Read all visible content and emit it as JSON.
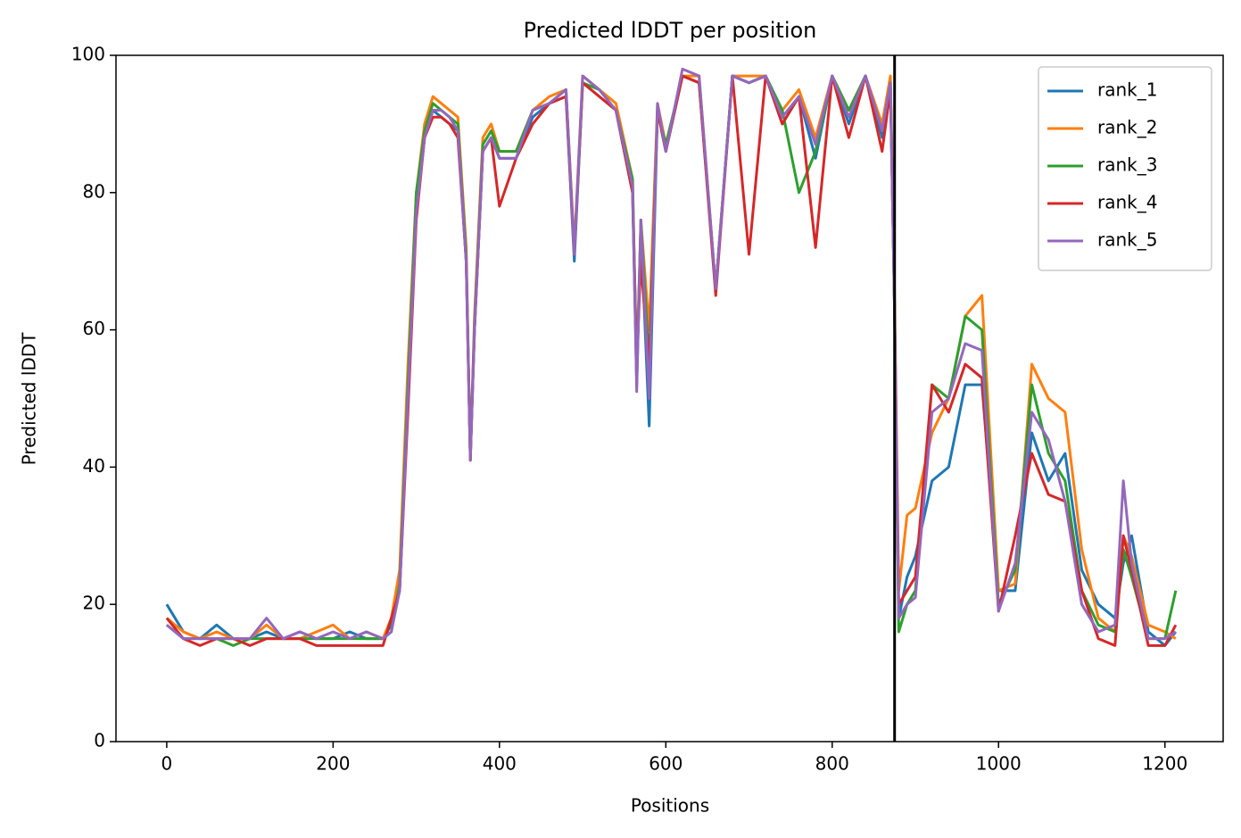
{
  "chart_data": {
    "type": "line",
    "title": "Predicted lDDT per position",
    "xlabel": "Positions",
    "ylabel": "Predicted lDDT",
    "x": [
      0,
      20,
      40,
      60,
      80,
      100,
      120,
      140,
      160,
      180,
      200,
      220,
      240,
      260,
      270,
      280,
      290,
      300,
      310,
      320,
      330,
      340,
      350,
      360,
      365,
      370,
      380,
      390,
      400,
      420,
      440,
      460,
      480,
      490,
      500,
      520,
      540,
      560,
      565,
      570,
      580,
      590,
      600,
      620,
      640,
      660,
      680,
      700,
      720,
      740,
      760,
      780,
      800,
      820,
      840,
      860,
      870,
      875,
      880,
      890,
      900,
      920,
      940,
      960,
      980,
      1000,
      1020,
      1040,
      1060,
      1080,
      1100,
      1120,
      1140,
      1150,
      1160,
      1180,
      1200,
      1213
    ],
    "series": [
      {
        "name": "rank_1",
        "color": "#1f77b4",
        "values": [
          20,
          16,
          15,
          17,
          15,
          15,
          16,
          15,
          16,
          15,
          15,
          16,
          15,
          15,
          17,
          22,
          50,
          78,
          88,
          92,
          91,
          90,
          89,
          70,
          42,
          60,
          86,
          88,
          85,
          85,
          91,
          93,
          94,
          70,
          96,
          94,
          92,
          80,
          52,
          75,
          46,
          92,
          86,
          97,
          96,
          66,
          97,
          96,
          97,
          90,
          94,
          85,
          97,
          90,
          97,
          88,
          96,
          62,
          18,
          24,
          27,
          38,
          40,
          52,
          52,
          22,
          22,
          45,
          38,
          42,
          25,
          20,
          18,
          26,
          30,
          16,
          14,
          16
        ]
      },
      {
        "name": "rank_2",
        "color": "#ff7f0e",
        "values": [
          18,
          16,
          15,
          16,
          15,
          15,
          17,
          15,
          15,
          16,
          17,
          15,
          16,
          15,
          18,
          25,
          55,
          80,
          90,
          94,
          93,
          92,
          91,
          72,
          41,
          62,
          88,
          90,
          86,
          86,
          92,
          94,
          95,
          72,
          97,
          95,
          93,
          82,
          54,
          76,
          60,
          93,
          87,
          97,
          97,
          66,
          97,
          97,
          97,
          92,
          95,
          88,
          97,
          92,
          97,
          90,
          97,
          65,
          22,
          33,
          34,
          45,
          50,
          62,
          65,
          22,
          23,
          55,
          50,
          48,
          28,
          18,
          16,
          30,
          27,
          17,
          16,
          15
        ]
      },
      {
        "name": "rank_3",
        "color": "#2ca02c",
        "values": [
          17,
          15,
          15,
          15,
          14,
          15,
          15,
          15,
          15,
          15,
          15,
          15,
          15,
          15,
          16,
          23,
          52,
          80,
          89,
          93,
          92,
          91,
          90,
          71,
          41,
          61,
          87,
          89,
          86,
          86,
          92,
          93,
          95,
          71,
          96,
          95,
          92,
          82,
          53,
          76,
          55,
          92,
          87,
          97,
          96,
          66,
          97,
          96,
          97,
          92,
          80,
          86,
          97,
          92,
          97,
          89,
          96,
          63,
          16,
          20,
          22,
          52,
          50,
          62,
          60,
          20,
          25,
          52,
          42,
          38,
          22,
          17,
          16,
          28,
          24,
          15,
          15,
          22
        ]
      },
      {
        "name": "rank_4",
        "color": "#d62728",
        "values": [
          18,
          15,
          14,
          15,
          15,
          14,
          15,
          15,
          15,
          14,
          14,
          14,
          14,
          14,
          18,
          22,
          48,
          76,
          88,
          91,
          91,
          90,
          88,
          70,
          41,
          60,
          86,
          88,
          78,
          85,
          90,
          93,
          94,
          71,
          96,
          94,
          92,
          80,
          55,
          70,
          54,
          92,
          86,
          97,
          96,
          65,
          97,
          71,
          97,
          90,
          94,
          72,
          97,
          88,
          97,
          86,
          95,
          63,
          20,
          22,
          24,
          52,
          48,
          55,
          53,
          19,
          30,
          42,
          36,
          35,
          22,
          15,
          14,
          30,
          25,
          14,
          14,
          17
        ]
      },
      {
        "name": "rank_5",
        "color": "#9467bd",
        "values": [
          17,
          15,
          15,
          15,
          15,
          15,
          18,
          15,
          16,
          15,
          16,
          15,
          16,
          15,
          16,
          22,
          50,
          77,
          88,
          92,
          92,
          91,
          89,
          70,
          41,
          60,
          86,
          88,
          85,
          85,
          92,
          93,
          95,
          71,
          97,
          95,
          92,
          81,
          51,
          76,
          50,
          93,
          86,
          98,
          97,
          66,
          97,
          96,
          97,
          91,
          94,
          87,
          97,
          91,
          97,
          89,
          96,
          63,
          18,
          20,
          21,
          48,
          50,
          58,
          57,
          19,
          26,
          48,
          44,
          35,
          20,
          16,
          17,
          38,
          26,
          15,
          15,
          16
        ]
      }
    ],
    "vlines": [
      875
    ],
    "xlim": [
      -61,
      1270
    ],
    "ylim": [
      0,
      100
    ],
    "xticks": [
      0,
      200,
      400,
      600,
      800,
      1000,
      1200
    ],
    "yticks": [
      0,
      20,
      40,
      60,
      80,
      100
    ],
    "legend": "upper right"
  }
}
